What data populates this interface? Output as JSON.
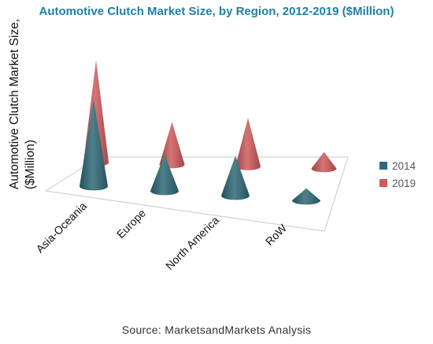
{
  "title": "Automotive Clutch Market Size, by Region, 2012-2019 ($Million)",
  "source": "Source: MarketsandMarkets Analysis",
  "colors": {
    "s2014": "#2f6a78",
    "s2019": "#cf5a5e",
    "title": "#1f7fa8"
  },
  "legend": {
    "item_2014": "2014",
    "item_2019": "2019"
  },
  "chart_data": {
    "type": "bar",
    "shape": "cone-3d",
    "title": "Automotive Clutch Market Size, by Region, 2012-2019 ($Million)",
    "ylabel": "Automotive Clutch Market Size, ($Million)",
    "categories": [
      "Asia-Oceania",
      "Europe",
      "North America",
      "RoW"
    ],
    "series": [
      {
        "name": "2014",
        "values": [
          100,
          42,
          46,
          14
        ]
      },
      {
        "name": "2019",
        "values": [
          118,
          49,
          56,
          19
        ]
      }
    ],
    "axis_values_shown": false,
    "grid": false,
    "legend_position": "right"
  }
}
